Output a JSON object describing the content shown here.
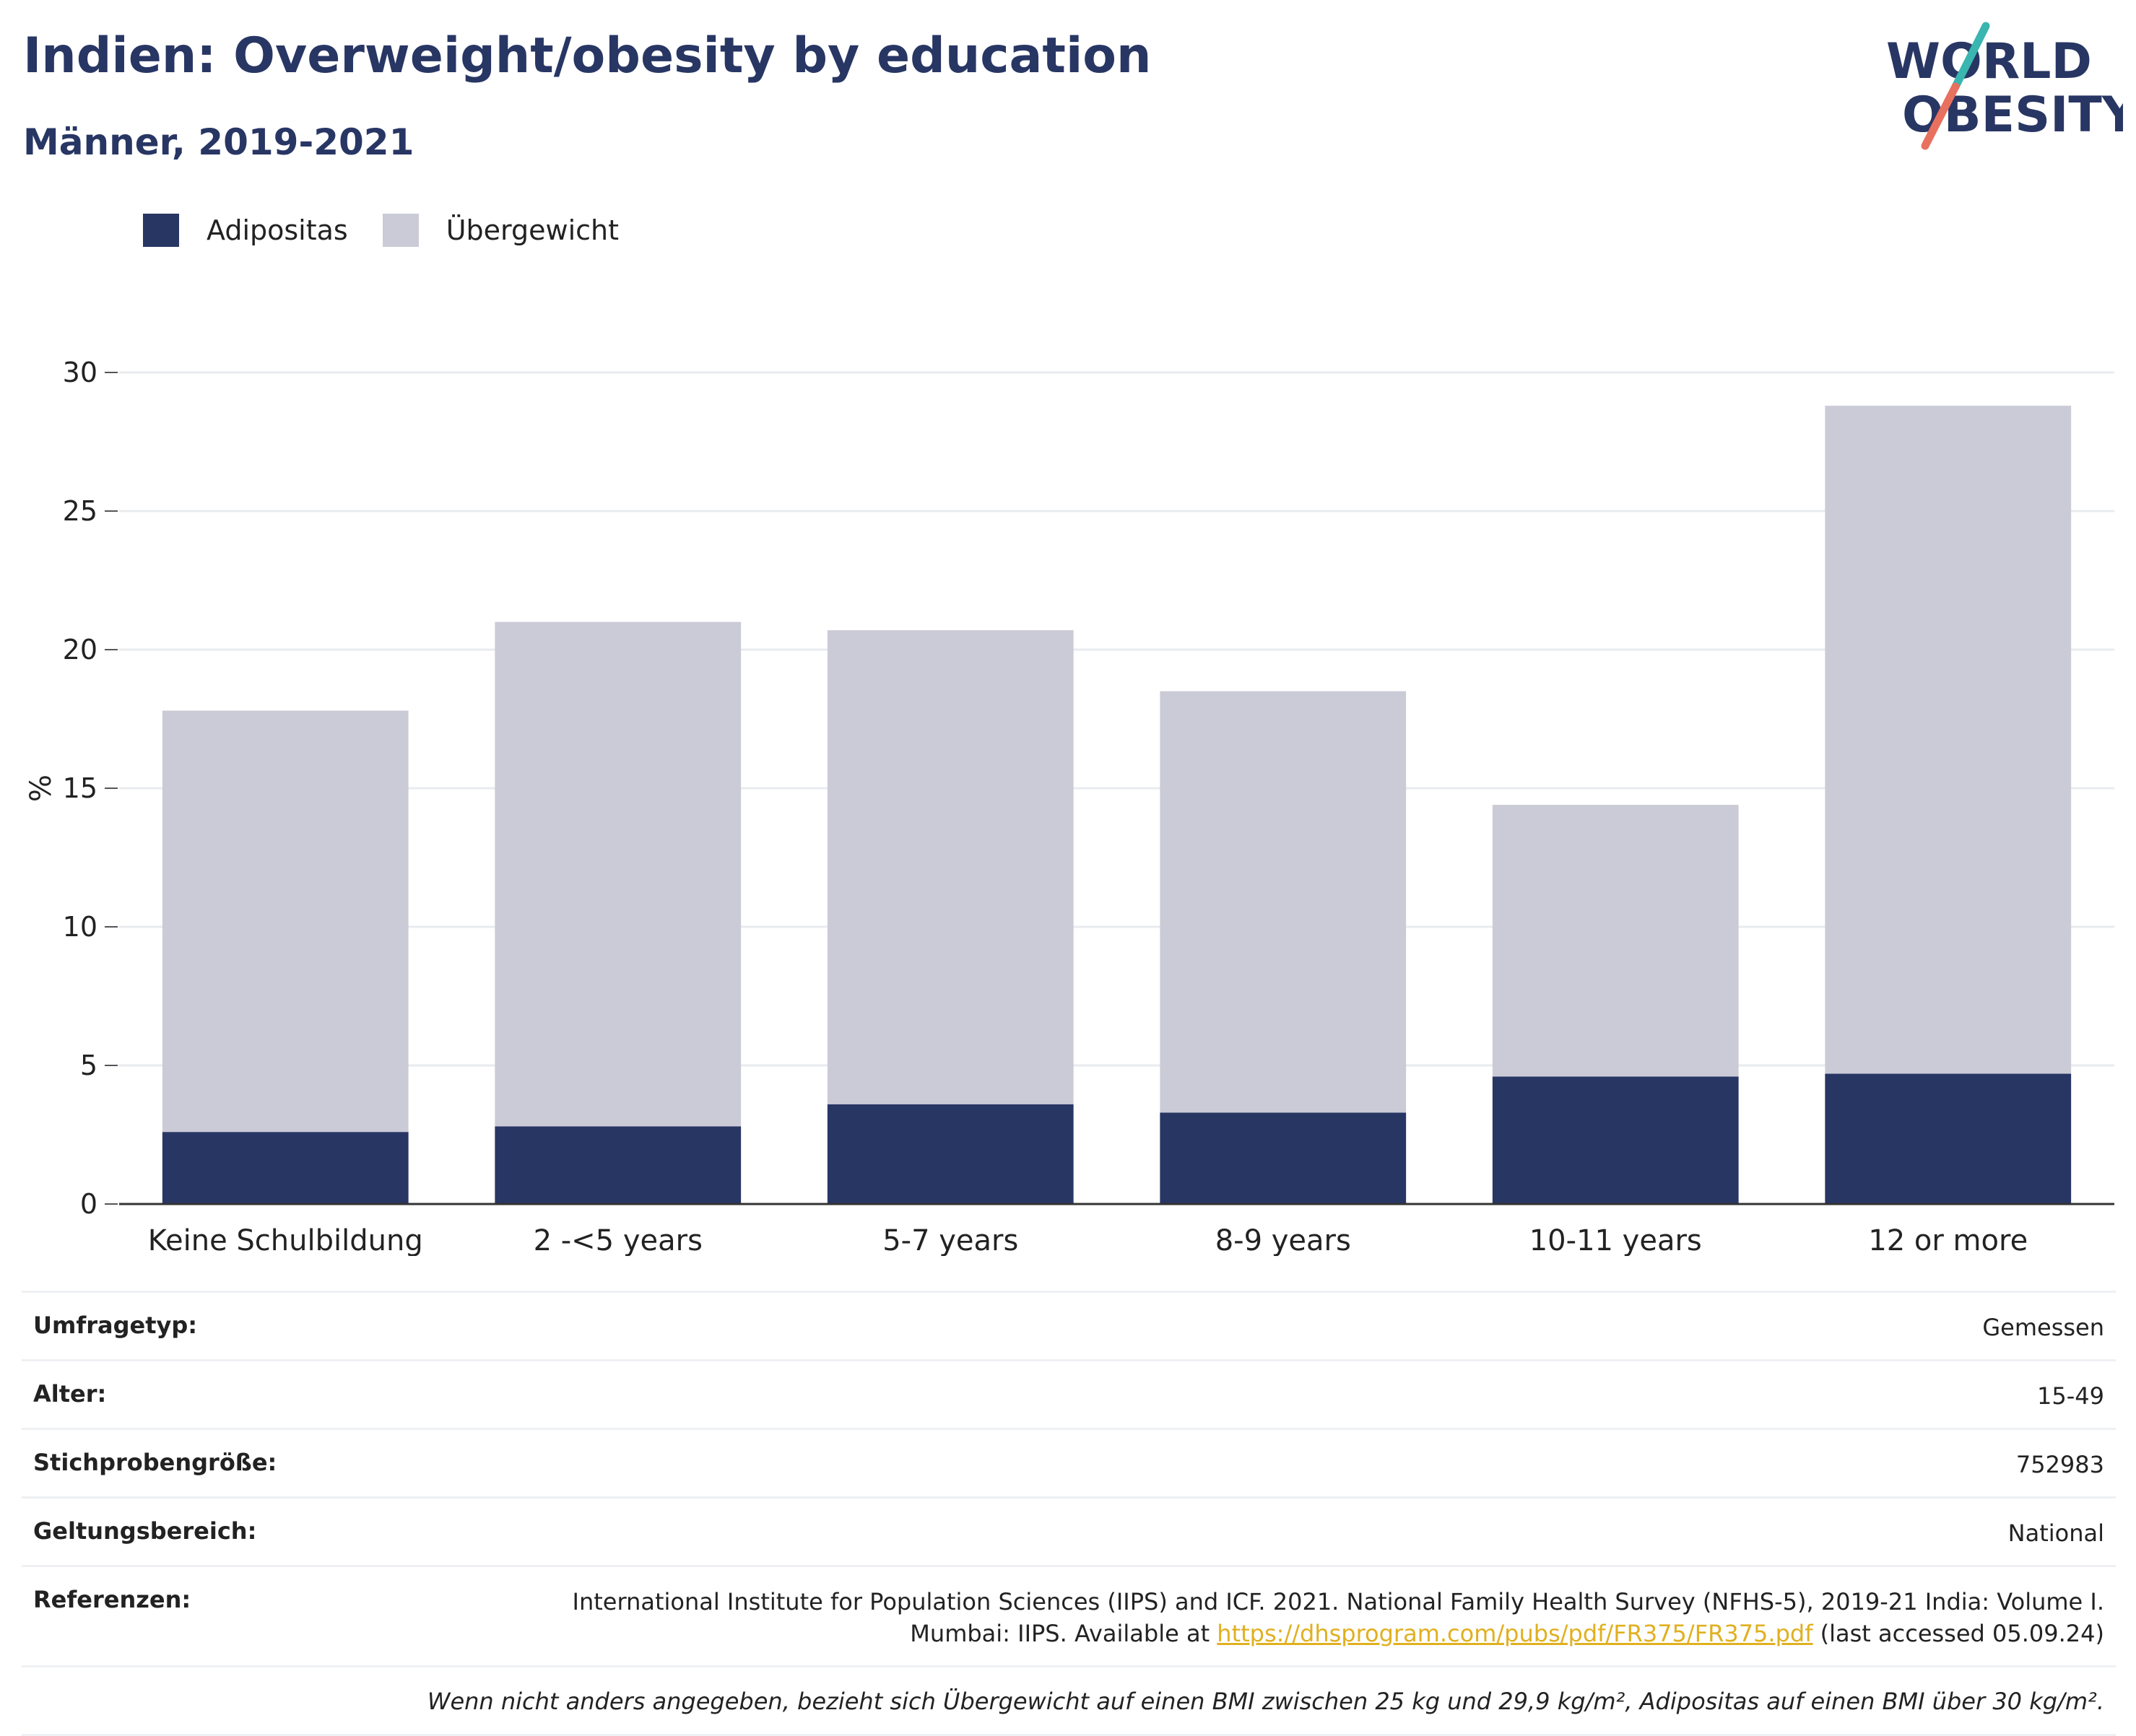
{
  "header": {
    "title": "Indien: Overweight/obesity by education",
    "subtitle": "Männer, 2019-2021"
  },
  "logo": {
    "line1": "WORLD",
    "line2": "OBESITY",
    "colors": {
      "text": "#283664",
      "teal": "#3ab5b0",
      "coral": "#e8705e"
    }
  },
  "legend": [
    {
      "label": "Adipositas",
      "color": "#283664"
    },
    {
      "label": "Übergewicht",
      "color": "#cacbd6"
    }
  ],
  "chart_data": {
    "type": "bar",
    "stacked": true,
    "categories": [
      "Keine Schulbildung",
      "2 -<5 years",
      "5-7 years",
      "8-9 years",
      "10-11 years",
      "12 or more"
    ],
    "series": [
      {
        "name": "Adipositas",
        "values": [
          2.6,
          2.8,
          3.6,
          3.3,
          4.6,
          4.7
        ],
        "color": "#283664"
      },
      {
        "name": "Übergewicht",
        "values": [
          15.2,
          18.2,
          17.1,
          15.2,
          9.8,
          24.1
        ],
        "color": "#cacbd6"
      }
    ],
    "ylabel": "%",
    "xlabel": "",
    "ylim": [
      0,
      30
    ],
    "yticks": [
      0,
      5,
      10,
      15,
      20,
      25,
      30
    ],
    "grid": true
  },
  "meta": {
    "rows": [
      {
        "label": "Umfragetyp:",
        "value": "Gemessen"
      },
      {
        "label": "Alter:",
        "value": "15-49"
      },
      {
        "label": "Stichprobengröße:",
        "value": "752983"
      },
      {
        "label": "Geltungsbereich:",
        "value": "National"
      }
    ],
    "references": {
      "label": "Referenzen:",
      "line1": "International Institute for Population Sciences (IIPS) and ICF. 2021. National Family Health Survey (NFHS-5), 2019-21 India: Volume I.",
      "line2_prefix": "Mumbai: IIPS. Available at ",
      "link": "https://dhsprogram.com/pubs/pdf/FR375/FR375.pdf",
      "line2_suffix": " (last accessed 05.09.24)"
    },
    "footnote": "Wenn nicht anders angegeben, bezieht sich Übergewicht auf einen BMI zwischen 25 kg und 29,9 kg/m², Adipositas auf einen BMI über 30 kg/m²."
  }
}
